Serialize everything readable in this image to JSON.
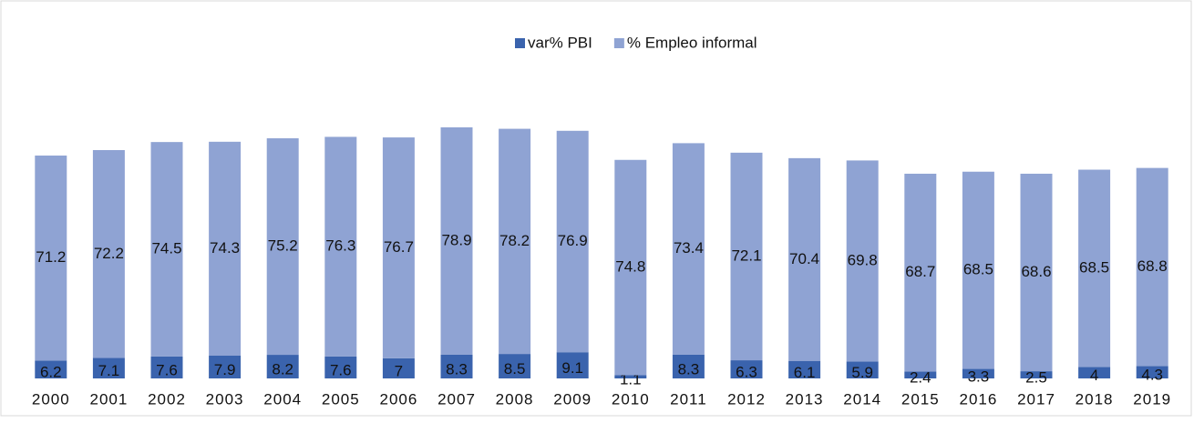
{
  "chart_data": {
    "type": "stacked-bar",
    "categories": [
      "2000",
      "2001",
      "2002",
      "2003",
      "2004",
      "2005",
      "2006",
      "2007",
      "2008",
      "2009",
      "2010",
      "2011",
      "2012",
      "2013",
      "2014",
      "2015",
      "2016",
      "2017",
      "2018",
      "2019"
    ],
    "series": [
      {
        "name": "var% PBI",
        "color": "#3a63ad",
        "values": [
          6.2,
          7.1,
          7.6,
          7.9,
          8.2,
          7.6,
          7,
          8.3,
          8.5,
          9.1,
          1.1,
          8.3,
          6.3,
          6.1,
          5.9,
          2.4,
          3.3,
          2.5,
          4,
          4.3
        ]
      },
      {
        "name": "% Empleo informal",
        "color": "#8fa3d3",
        "values": [
          71.2,
          72.2,
          74.5,
          74.3,
          75.2,
          76.3,
          76.7,
          78.9,
          78.2,
          76.9,
          74.8,
          73.4,
          72.1,
          70.4,
          69.8,
          68.7,
          68.5,
          68.6,
          68.5,
          68.8
        ]
      }
    ],
    "legend": "top"
  }
}
